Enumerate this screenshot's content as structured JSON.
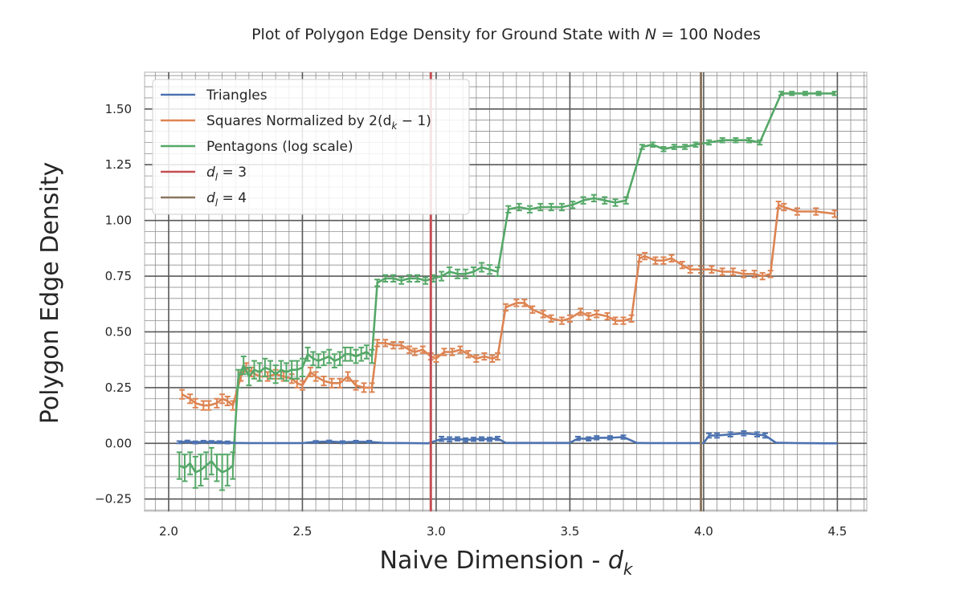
{
  "chart_data": {
    "type": "line",
    "title": "Plot of Polygon Edge Density for Ground State with N = 100 Nodes",
    "title_parts": {
      "prefix": "Plot of Polygon Edge Density for Ground State with",
      "var": "N",
      "suffix": "= 100 Nodes"
    },
    "xlabel": "Naive Dimension - d",
    "xlabel_parts": {
      "text": "Naive Dimension - ",
      "var": "d",
      "sub": "k"
    },
    "ylabel": "Polygon Edge Density",
    "xlim": [
      1.91,
      4.61
    ],
    "ylim": [
      -0.305,
      1.665
    ],
    "xticks": [
      2.0,
      2.5,
      3.0,
      3.5,
      4.0,
      4.5
    ],
    "xtick_labels": [
      "2.0",
      "2.5",
      "3.0",
      "3.5",
      "4.0",
      "4.5"
    ],
    "yticks": [
      -0.25,
      0.0,
      0.25,
      0.5,
      0.75,
      1.0,
      1.25,
      1.5
    ],
    "ytick_labels": [
      "−0.25",
      "0.00",
      "0.25",
      "0.50",
      "0.75",
      "1.00",
      "1.25",
      "1.50"
    ],
    "grid": true,
    "legend_position": "top-left",
    "legend": [
      {
        "key": "triangles",
        "label": "Triangles",
        "color": "#4c72b0"
      },
      {
        "key": "squares",
        "label": "Squares Normalized by  2(d",
        "sub": "k",
        "tail": " − 1)",
        "color": "#dd8452"
      },
      {
        "key": "pentagons",
        "label": "Pentagons (log scale)",
        "color": "#55a868"
      },
      {
        "key": "dl3",
        "label": "d",
        "sub": "l",
        "tail": " = 3",
        "color": "#c44e52"
      },
      {
        "key": "dl4",
        "label": "d",
        "sub": "l",
        "tail": " = 4",
        "color": "#8c7660"
      }
    ],
    "vlines": [
      {
        "name": "d_l = 3",
        "x": 2.98,
        "color": "#c44e52"
      },
      {
        "name": "d_l = 4",
        "x": 3.99,
        "color": "#8c7660"
      }
    ],
    "series": [
      {
        "name": "Triangles",
        "color": "#4c72b0",
        "x": [
          2.04,
          2.07,
          2.1,
          2.13,
          2.16,
          2.19,
          2.22,
          2.25,
          2.3,
          2.4,
          2.5,
          2.55,
          2.6,
          2.65,
          2.7,
          2.75,
          2.8,
          2.9,
          2.97,
          3.02,
          3.05,
          3.08,
          3.11,
          3.14,
          3.17,
          3.2,
          3.23,
          3.26,
          3.35,
          3.45,
          3.5,
          3.53,
          3.57,
          3.6,
          3.65,
          3.7,
          3.75,
          3.8,
          3.9,
          4.0,
          4.02,
          4.05,
          4.1,
          4.15,
          4.2,
          4.23,
          4.27,
          4.35,
          4.45,
          4.5
        ],
        "values": [
          0.005,
          0.008,
          0.004,
          0.007,
          0.006,
          0.005,
          0.004,
          0.002,
          0.001,
          0.001,
          0.001,
          0.006,
          0.008,
          0.005,
          0.007,
          0.007,
          0.002,
          0.001,
          0.0,
          0.02,
          0.018,
          0.02,
          0.015,
          0.018,
          0.02,
          0.018,
          0.022,
          0.002,
          0.002,
          0.002,
          0.002,
          0.022,
          0.02,
          0.025,
          0.025,
          0.028,
          0.002,
          0.001,
          0.001,
          0.001,
          0.035,
          0.035,
          0.04,
          0.045,
          0.04,
          0.035,
          0.003,
          0.001,
          0.0,
          0.0
        ],
        "errors": [
          0.005,
          0.005,
          0.005,
          0.005,
          0.005,
          0.005,
          0.005,
          0,
          0,
          0,
          0,
          0.005,
          0.005,
          0.005,
          0.005,
          0.005,
          0,
          0,
          0,
          0.01,
          0.01,
          0.008,
          0.008,
          0.008,
          0.008,
          0.008,
          0.008,
          0,
          0,
          0,
          0,
          0.008,
          0.008,
          0.008,
          0.008,
          0.008,
          0,
          0,
          0,
          0,
          0.01,
          0.01,
          0.01,
          0.01,
          0.01,
          0.01,
          0,
          0,
          0,
          0
        ]
      },
      {
        "name": "Squares Normalized by 2(d_k − 1)",
        "color": "#dd8452",
        "x": [
          2.05,
          2.08,
          2.1,
          2.13,
          2.15,
          2.18,
          2.2,
          2.22,
          2.24,
          2.27,
          2.29,
          2.31,
          2.34,
          2.37,
          2.4,
          2.43,
          2.46,
          2.48,
          2.5,
          2.53,
          2.55,
          2.58,
          2.61,
          2.64,
          2.67,
          2.7,
          2.73,
          2.76,
          2.78,
          2.81,
          2.84,
          2.87,
          2.9,
          2.92,
          2.95,
          2.98,
          3.0,
          3.03,
          3.06,
          3.09,
          3.12,
          3.15,
          3.18,
          3.21,
          3.23,
          3.26,
          3.3,
          3.33,
          3.36,
          3.4,
          3.43,
          3.47,
          3.5,
          3.54,
          3.57,
          3.6,
          3.64,
          3.67,
          3.7,
          3.73,
          3.76,
          3.78,
          3.82,
          3.85,
          3.88,
          3.92,
          3.95,
          3.99,
          4.03,
          4.07,
          4.11,
          4.15,
          4.19,
          4.22,
          4.25,
          4.28,
          4.3,
          4.35,
          4.42,
          4.49
        ],
        "values": [
          0.22,
          0.2,
          0.18,
          0.17,
          0.17,
          0.18,
          0.2,
          0.19,
          0.17,
          0.3,
          0.34,
          0.32,
          0.3,
          0.3,
          0.31,
          0.3,
          0.29,
          0.27,
          0.26,
          0.32,
          0.3,
          0.28,
          0.27,
          0.27,
          0.3,
          0.26,
          0.25,
          0.25,
          0.45,
          0.45,
          0.44,
          0.44,
          0.42,
          0.41,
          0.42,
          0.39,
          0.38,
          0.41,
          0.41,
          0.42,
          0.4,
          0.38,
          0.39,
          0.38,
          0.39,
          0.61,
          0.63,
          0.63,
          0.6,
          0.58,
          0.56,
          0.55,
          0.56,
          0.59,
          0.57,
          0.58,
          0.57,
          0.55,
          0.55,
          0.56,
          0.83,
          0.84,
          0.82,
          0.82,
          0.83,
          0.8,
          0.78,
          0.78,
          0.78,
          0.77,
          0.77,
          0.76,
          0.76,
          0.75,
          0.76,
          1.07,
          1.06,
          1.04,
          1.04,
          1.03
        ],
        "errors": [
          0.02,
          0.02,
          0.02,
          0.02,
          0.02,
          0.02,
          0.02,
          0.02,
          0.02,
          0.02,
          0.02,
          0.02,
          0.02,
          0.02,
          0.02,
          0.02,
          0.02,
          0.02,
          0.02,
          0.02,
          0.02,
          0.02,
          0.02,
          0.02,
          0.02,
          0.02,
          0.02,
          0.02,
          0.015,
          0.015,
          0.015,
          0.015,
          0.015,
          0.015,
          0.015,
          0.015,
          0.015,
          0.015,
          0.015,
          0.015,
          0.015,
          0.015,
          0.015,
          0.015,
          0.015,
          0.015,
          0.015,
          0.015,
          0.015,
          0.015,
          0.015,
          0.015,
          0.015,
          0.015,
          0.015,
          0.015,
          0.015,
          0.015,
          0.015,
          0.015,
          0.015,
          0.015,
          0.015,
          0.015,
          0.015,
          0.015,
          0.015,
          0.015,
          0.015,
          0.015,
          0.015,
          0.015,
          0.015,
          0.015,
          0.015,
          0.015,
          0.015,
          0.015,
          0.015,
          0.015
        ]
      },
      {
        "name": "Pentagons (log scale)",
        "color": "#55a868",
        "x": [
          2.04,
          2.06,
          2.08,
          2.1,
          2.12,
          2.14,
          2.16,
          2.18,
          2.2,
          2.22,
          2.24,
          2.26,
          2.28,
          2.3,
          2.32,
          2.34,
          2.36,
          2.38,
          2.4,
          2.42,
          2.44,
          2.46,
          2.48,
          2.5,
          2.52,
          2.54,
          2.56,
          2.58,
          2.6,
          2.62,
          2.64,
          2.66,
          2.68,
          2.7,
          2.72,
          2.74,
          2.76,
          2.78,
          2.81,
          2.84,
          2.87,
          2.9,
          2.93,
          2.96,
          2.99,
          3.02,
          3.05,
          3.08,
          3.11,
          3.14,
          3.17,
          3.2,
          3.23,
          3.27,
          3.31,
          3.35,
          3.39,
          3.43,
          3.47,
          3.51,
          3.55,
          3.59,
          3.63,
          3.67,
          3.71,
          3.77,
          3.81,
          3.85,
          3.89,
          3.93,
          3.97,
          4.02,
          4.07,
          4.12,
          4.17,
          4.21,
          4.29,
          4.33,
          4.38,
          4.43,
          4.49
        ],
        "values": [
          -0.1,
          -0.11,
          -0.09,
          -0.13,
          -0.12,
          -0.1,
          -0.08,
          -0.11,
          -0.13,
          -0.12,
          -0.1,
          0.29,
          0.35,
          0.3,
          0.33,
          0.32,
          0.34,
          0.33,
          0.31,
          0.33,
          0.32,
          0.33,
          0.33,
          0.34,
          0.4,
          0.38,
          0.37,
          0.38,
          0.39,
          0.37,
          0.38,
          0.4,
          0.4,
          0.39,
          0.4,
          0.41,
          0.39,
          0.72,
          0.74,
          0.74,
          0.73,
          0.74,
          0.74,
          0.73,
          0.74,
          0.75,
          0.77,
          0.76,
          0.76,
          0.77,
          0.79,
          0.78,
          0.77,
          1.05,
          1.06,
          1.05,
          1.06,
          1.06,
          1.06,
          1.07,
          1.09,
          1.1,
          1.09,
          1.08,
          1.09,
          1.33,
          1.34,
          1.32,
          1.33,
          1.33,
          1.34,
          1.35,
          1.36,
          1.36,
          1.36,
          1.35,
          1.57,
          1.57,
          1.57,
          1.57,
          1.57
        ],
        "errors": [
          0.06,
          0.06,
          0.05,
          0.07,
          0.07,
          0.06,
          0.06,
          0.06,
          0.08,
          0.07,
          0.06,
          0.04,
          0.04,
          0.04,
          0.04,
          0.04,
          0.04,
          0.04,
          0.04,
          0.04,
          0.04,
          0.04,
          0.04,
          0.04,
          0.03,
          0.03,
          0.03,
          0.03,
          0.03,
          0.03,
          0.03,
          0.03,
          0.03,
          0.03,
          0.03,
          0.03,
          0.03,
          0.015,
          0.015,
          0.015,
          0.015,
          0.015,
          0.015,
          0.015,
          0.015,
          0.02,
          0.02,
          0.02,
          0.02,
          0.02,
          0.02,
          0.02,
          0.02,
          0.015,
          0.015,
          0.015,
          0.015,
          0.015,
          0.015,
          0.015,
          0.015,
          0.015,
          0.015,
          0.015,
          0.015,
          0.01,
          0.01,
          0.01,
          0.01,
          0.01,
          0.01,
          0.01,
          0.01,
          0.01,
          0.01,
          0.01,
          0.008,
          0.008,
          0.008,
          0.008,
          0.008
        ]
      }
    ]
  }
}
